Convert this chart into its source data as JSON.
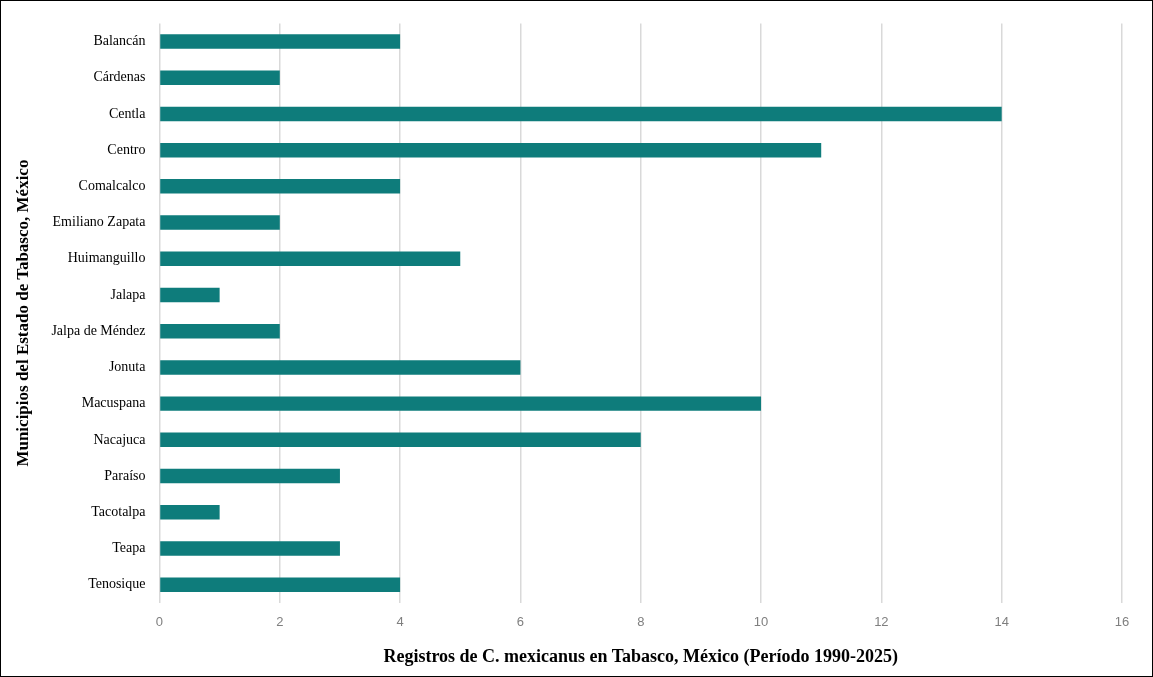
{
  "chart_data": {
    "type": "bar",
    "orientation": "horizontal",
    "xlabel": "Registros de C. mexicanus en Tabasco, México (Período 1990-2025)",
    "ylabel": "Municipios del Estado de Tabasco, México",
    "categories": [
      "Balancán",
      "Cárdenas",
      "Centla",
      "Centro",
      "Comalcalco",
      "Emiliano Zapata",
      "Huimanguillo",
      "Jalapa",
      "Jalpa de Méndez",
      "Jonuta",
      "Macuspana",
      "Nacajuca",
      "Paraíso",
      "Tacotalpa",
      "Teapa",
      "Tenosique"
    ],
    "values": [
      4,
      2,
      14,
      11,
      4,
      2,
      5,
      1,
      2,
      6,
      10,
      8,
      3,
      1,
      3,
      4
    ],
    "color": "#0e7c7b",
    "xlim": [
      0,
      16
    ],
    "xticks": [
      0,
      2,
      4,
      6,
      8,
      10,
      12,
      14,
      16
    ],
    "grid": "x",
    "legend": false
  }
}
